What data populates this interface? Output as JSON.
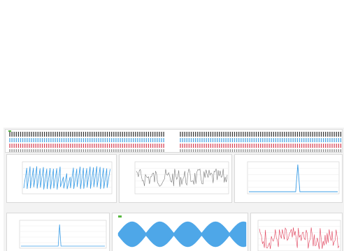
{
  "colors": {
    "track_dark": "#3a3a3a",
    "track_blue": "#4aa8e6",
    "track_red": "#d9485a",
    "track_grey": "#8a8a8a",
    "panel_border": "#d9d9d9",
    "series_blue": "#3b9de6",
    "series_grey": "#7a7a7a",
    "series_red": "#e0405a",
    "legend_green": "#58b840"
  },
  "panels": {
    "p1": {
      "title": "",
      "type": "line"
    },
    "p2": {
      "title": "",
      "type": "line"
    },
    "p3": {
      "title": "",
      "type": "line"
    },
    "p4": {
      "title": "",
      "type": "line"
    },
    "p5": {
      "title": "",
      "type": "area"
    },
    "p6": {
      "title": "",
      "type": "line"
    }
  }
}
